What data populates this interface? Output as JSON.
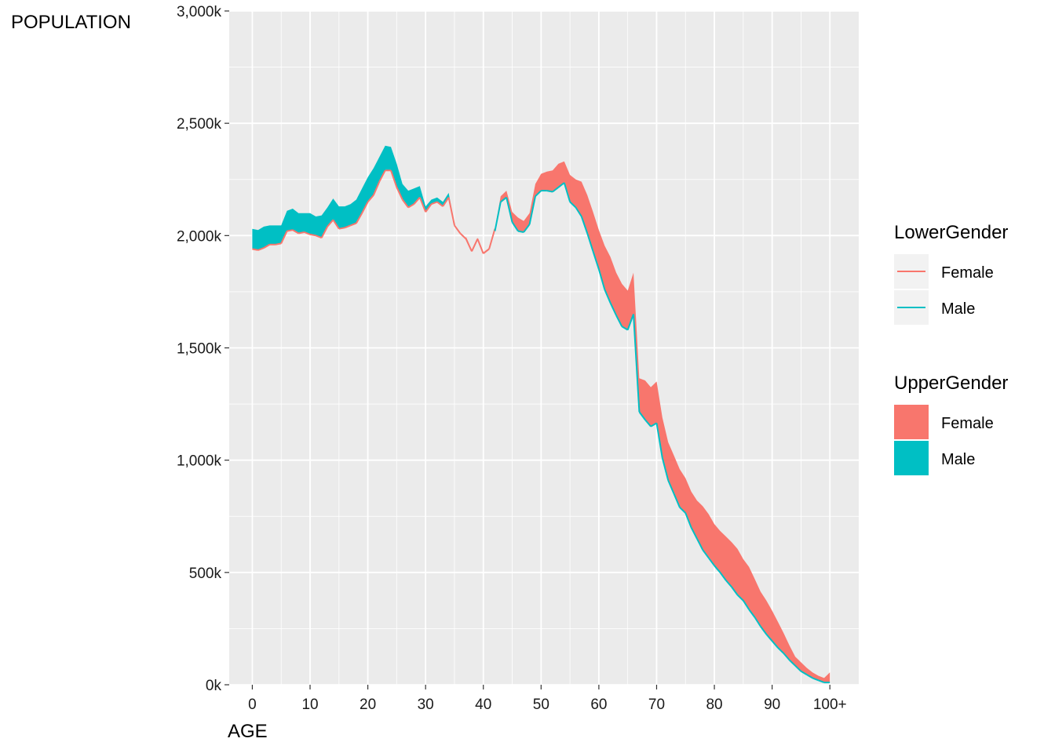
{
  "chart_data": {
    "type": "area",
    "ylabel": "POPULATION",
    "xlabel": "AGE",
    "x_ticks": [
      "0",
      "10",
      "20",
      "30",
      "40",
      "50",
      "60",
      "70",
      "80",
      "90",
      "100+"
    ],
    "y_ticks": [
      "0k",
      "500k",
      "1,000k",
      "1,500k",
      "2,000k",
      "2,500k",
      "3,000k"
    ],
    "xlim": [
      -4,
      105
    ],
    "ylim": [
      0,
      3000000
    ],
    "grid": true,
    "legend_position": "right",
    "legends": [
      {
        "title": "LowerGender",
        "kind": "line",
        "entries": [
          {
            "label": "Female",
            "color": "#F8766D"
          },
          {
            "label": "Male",
            "color": "#00BFC4"
          }
        ]
      },
      {
        "title": "UpperGender",
        "kind": "fill",
        "entries": [
          {
            "label": "Female",
            "color": "#F8766D"
          },
          {
            "label": "Male",
            "color": "#00BFC4"
          }
        ]
      }
    ],
    "colors": {
      "female": "#F8766D",
      "male": "#00BFC4",
      "panel": "#EBEBEB",
      "grid": "#FFFFFF"
    },
    "x": [
      0,
      1,
      2,
      3,
      4,
      5,
      6,
      7,
      8,
      9,
      10,
      11,
      12,
      13,
      14,
      15,
      16,
      17,
      18,
      19,
      20,
      21,
      22,
      23,
      24,
      25,
      26,
      27,
      28,
      29,
      30,
      31,
      32,
      33,
      34,
      35,
      36,
      37,
      38,
      39,
      40,
      41,
      42,
      43,
      44,
      45,
      46,
      47,
      48,
      49,
      50,
      51,
      52,
      53,
      54,
      55,
      56,
      57,
      58,
      59,
      60,
      61,
      62,
      63,
      64,
      65,
      66,
      67,
      68,
      69,
      70,
      71,
      72,
      73,
      74,
      75,
      76,
      77,
      78,
      79,
      80,
      81,
      82,
      83,
      84,
      85,
      86,
      87,
      88,
      89,
      90,
      91,
      92,
      93,
      94,
      95,
      96,
      97,
      98,
      99,
      100
    ],
    "series": [
      {
        "name": "Male",
        "values": [
          2030000,
          2025000,
          2040000,
          2045000,
          2045000,
          2045000,
          2110000,
          2120000,
          2100000,
          2100000,
          2100000,
          2085000,
          2090000,
          2125000,
          2165000,
          2130000,
          2130000,
          2140000,
          2160000,
          2210000,
          2260000,
          2300000,
          2350000,
          2400000,
          2395000,
          2320000,
          2230000,
          2200000,
          2210000,
          2220000,
          2130000,
          2160000,
          2170000,
          2150000,
          2190000,
          2050000,
          2010000,
          1995000,
          1935000,
          1990000,
          1925000,
          1945000,
          2020000,
          2150000,
          2170000,
          2060000,
          2020000,
          2015000,
          2050000,
          2175000,
          2200000,
          2200000,
          2195000,
          2215000,
          2235000,
          2150000,
          2125000,
          2085000,
          2010000,
          1930000,
          1850000,
          1760000,
          1700000,
          1645000,
          1595000,
          1580000,
          1650000,
          1215000,
          1180000,
          1150000,
          1165000,
          1010000,
          910000,
          850000,
          790000,
          765000,
          700000,
          650000,
          600000,
          565000,
          530000,
          500000,
          465000,
          435000,
          400000,
          375000,
          335000,
          300000,
          260000,
          225000,
          195000,
          165000,
          140000,
          110000,
          85000,
          60000,
          45000,
          30000,
          20000,
          10000,
          10000
        ]
      },
      {
        "name": "Female",
        "values": [
          1940000,
          1935000,
          1945000,
          1960000,
          1960000,
          1965000,
          2020000,
          2025000,
          2010000,
          2015000,
          2005000,
          2000000,
          1990000,
          2040000,
          2070000,
          2030000,
          2035000,
          2045000,
          2055000,
          2100000,
          2150000,
          2180000,
          2240000,
          2290000,
          2290000,
          2215000,
          2160000,
          2125000,
          2140000,
          2170000,
          2105000,
          2140000,
          2150000,
          2130000,
          2170000,
          2045000,
          2010000,
          1985000,
          1930000,
          1985000,
          1920000,
          1940000,
          2030000,
          2175000,
          2200000,
          2105000,
          2080000,
          2065000,
          2100000,
          2230000,
          2275000,
          2285000,
          2290000,
          2320000,
          2330000,
          2270000,
          2250000,
          2240000,
          2180000,
          2105000,
          2025000,
          1955000,
          1905000,
          1835000,
          1785000,
          1755000,
          1835000,
          1365000,
          1355000,
          1325000,
          1350000,
          1190000,
          1080000,
          1020000,
          960000,
          920000,
          860000,
          820000,
          795000,
          760000,
          715000,
          685000,
          660000,
          635000,
          605000,
          560000,
          525000,
          470000,
          415000,
          375000,
          330000,
          280000,
          230000,
          175000,
          125000,
          100000,
          75000,
          55000,
          40000,
          30000,
          55000
        ]
      }
    ],
    "segments": [
      {
        "upper": "Male",
        "from": 0,
        "to": 35
      },
      {
        "upper": "Female",
        "from": 37,
        "to": 100
      }
    ]
  }
}
